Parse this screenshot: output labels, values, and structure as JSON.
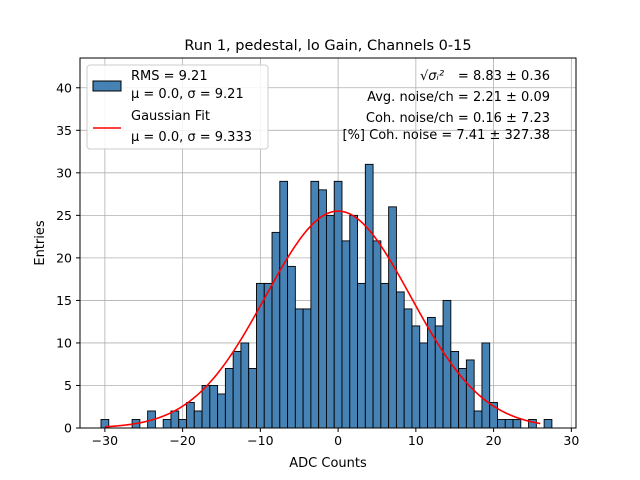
{
  "chart_data": {
    "type": "bar",
    "title": "Run 1, pedestal, lo Gain, Channels 0-15",
    "xlabel": "ADC Counts",
    "ylabel": "Entries",
    "xlim": [
      -33.2,
      30.6
    ],
    "ylim": [
      0,
      43.5
    ],
    "xticks": [
      -30,
      -20,
      -10,
      0,
      10,
      20,
      30
    ],
    "yticks": [
      0,
      5,
      10,
      15,
      20,
      25,
      30,
      35,
      40
    ],
    "grid": true,
    "legend_position": "upper-left",
    "colors": {
      "bars": "#4682b4",
      "bar_edge": "#000000",
      "fit": "#ff0000",
      "grid": "#b0b0b0"
    },
    "histogram": {
      "bin_width": 1,
      "bins": [
        {
          "x": -30,
          "y": 1
        },
        {
          "x": -26,
          "y": 1
        },
        {
          "x": -24,
          "y": 2
        },
        {
          "x": -22,
          "y": 1
        },
        {
          "x": -21,
          "y": 2
        },
        {
          "x": -20,
          "y": 1
        },
        {
          "x": -19,
          "y": 3
        },
        {
          "x": -18,
          "y": 2
        },
        {
          "x": -17,
          "y": 5
        },
        {
          "x": -16,
          "y": 5
        },
        {
          "x": -15,
          "y": 4
        },
        {
          "x": -14,
          "y": 7
        },
        {
          "x": -13,
          "y": 9
        },
        {
          "x": -12,
          "y": 10
        },
        {
          "x": -11,
          "y": 7
        },
        {
          "x": -10,
          "y": 17
        },
        {
          "x": -9,
          "y": 17
        },
        {
          "x": -8,
          "y": 23
        },
        {
          "x": -7,
          "y": 29
        },
        {
          "x": -6,
          "y": 19
        },
        {
          "x": -5,
          "y": 14
        },
        {
          "x": -4,
          "y": 14
        },
        {
          "x": -3,
          "y": 29
        },
        {
          "x": -2,
          "y": 28
        },
        {
          "x": -1,
          "y": 25
        },
        {
          "x": 0,
          "y": 29
        },
        {
          "x": 1,
          "y": 22
        },
        {
          "x": 2,
          "y": 25
        },
        {
          "x": 3,
          "y": 17
        },
        {
          "x": 4,
          "y": 31
        },
        {
          "x": 5,
          "y": 22
        },
        {
          "x": 6,
          "y": 17
        },
        {
          "x": 7,
          "y": 26
        },
        {
          "x": 8,
          "y": 16
        },
        {
          "x": 9,
          "y": 14
        },
        {
          "x": 10,
          "y": 12
        },
        {
          "x": 11,
          "y": 10
        },
        {
          "x": 12,
          "y": 13
        },
        {
          "x": 13,
          "y": 12
        },
        {
          "x": 14,
          "y": 15
        },
        {
          "x": 15,
          "y": 9
        },
        {
          "x": 16,
          "y": 7
        },
        {
          "x": 17,
          "y": 8
        },
        {
          "x": 18,
          "y": 2
        },
        {
          "x": 19,
          "y": 10
        },
        {
          "x": 20,
          "y": 3
        },
        {
          "x": 21,
          "y": 1
        },
        {
          "x": 22,
          "y": 1
        },
        {
          "x": 23,
          "y": 1
        },
        {
          "x": 25,
          "y": 1
        },
        {
          "x": 27,
          "y": 1
        }
      ]
    },
    "fit": {
      "mu": 0.0,
      "sigma": 9.333,
      "amplitude": 25.5
    },
    "legend": [
      {
        "kind": "patch",
        "line1": "RMS = 9.21",
        "line2": "μ = 0.0, σ = 9.21"
      },
      {
        "kind": "line",
        "line1": "Gaussian Fit",
        "line2": "μ = 0.0, σ = 9.333"
      }
    ],
    "annotations": [
      {
        "symbol": "√σᵢ²",
        "text": "= 8.83 ± 0.36"
      },
      {
        "text": "Avg. noise/ch = 2.21 ± 0.09"
      },
      {
        "text": "Coh. noise/ch = 0.16 ± 7.23"
      },
      {
        "text": "[%] Coh. noise = 7.41 ± 327.38"
      }
    ]
  }
}
